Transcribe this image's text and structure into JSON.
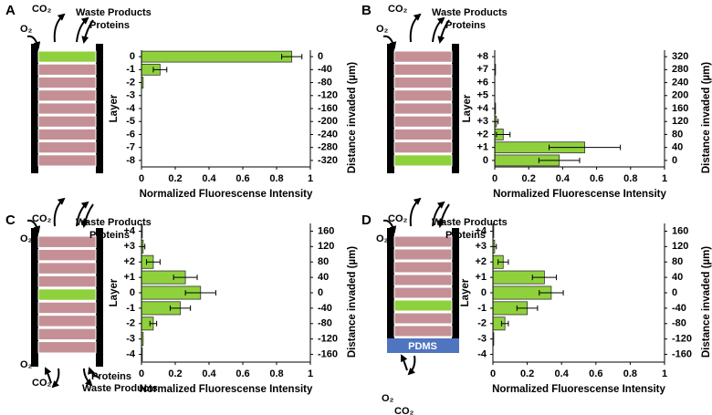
{
  "diagrams": [
    {
      "label": "A",
      "top": [
        "CO₂",
        "O₂",
        "Waste Products",
        "Proteins"
      ]
    },
    {
      "label": "B",
      "top": [
        "CO₂",
        "O₂",
        "Waste Products",
        "Proteins"
      ]
    },
    {
      "label": "C",
      "top": [
        "CO₂",
        "O₂",
        "Waste Products",
        "Proteins"
      ],
      "bottom": [
        "O₂",
        "CO₂",
        "Proteins",
        "Waste Products"
      ]
    },
    {
      "label": "D",
      "top": [
        "CO₂",
        "O₂",
        "Waste Products",
        "Proteins"
      ],
      "bottom": [
        "O₂",
        "CO₂"
      ],
      "base": "PDMS"
    }
  ],
  "chart_data": [
    {
      "type": "bar",
      "orientation": "horizontal",
      "categories": [
        "0",
        "-1",
        "-2",
        "-3",
        "-4",
        "-5",
        "-6",
        "-7",
        "-8"
      ],
      "y2_categories": [
        0,
        -40,
        -80,
        -120,
        -160,
        -200,
        -240,
        -280,
        -320
      ],
      "series": [
        {
          "color": "#8fd13c",
          "values": [
            0.89,
            0.11,
            0.01,
            0,
            0,
            0,
            0,
            0,
            0
          ],
          "errors": [
            0.06,
            0.04,
            null,
            null,
            null,
            null,
            null,
            null,
            null
          ]
        }
      ],
      "xlim": [
        0,
        1
      ],
      "xticks": [
        0,
        0.2,
        0.4,
        0.6,
        0.8,
        1
      ],
      "xlabel": "Normalized Fluorescense Intensity",
      "ylabel": "Layer",
      "y2label": "Distance invaded (µm)"
    },
    {
      "type": "bar",
      "orientation": "horizontal",
      "categories": [
        "+8",
        "+7",
        "+6",
        "+5",
        "+4",
        "+3",
        "+2",
        "+1",
        "0"
      ],
      "y2_categories": [
        320,
        280,
        240,
        200,
        160,
        120,
        80,
        40,
        0
      ],
      "series": [
        {
          "color": "#8fd13c",
          "values": [
            0,
            0.005,
            0,
            0,
            0.005,
            0.01,
            0.05,
            0.53,
            0.38
          ],
          "errors": [
            null,
            null,
            null,
            null,
            null,
            0.01,
            0.04,
            0.21,
            0.12
          ]
        }
      ],
      "xlim": [
        0,
        1
      ],
      "xticks": [
        0,
        0.2,
        0.4,
        0.6,
        0.8,
        1
      ],
      "xlabel": "Normalized Fluorescense Intensity",
      "ylabel": "Layer",
      "y2label": "Distance invaded (µm)"
    },
    {
      "type": "bar",
      "orientation": "horizontal",
      "categories": [
        "+4",
        "+3",
        "+2",
        "+1",
        "0",
        "-1",
        "-2",
        "-3",
        "-4"
      ],
      "y2_categories": [
        160,
        120,
        80,
        40,
        0,
        -40,
        -80,
        -120,
        -160
      ],
      "series": [
        {
          "color": "#8fd13c",
          "values": [
            0.005,
            0.01,
            0.07,
            0.26,
            0.35,
            0.23,
            0.07,
            0.01,
            0.005
          ],
          "errors": [
            null,
            0.01,
            0.04,
            0.07,
            0.09,
            0.06,
            0.02,
            null,
            null
          ]
        }
      ],
      "xlim": [
        0,
        1
      ],
      "xticks": [
        0,
        0.2,
        0.4,
        0.6,
        0.8,
        1
      ],
      "xlabel": "Normalized Fluorescense Intensity",
      "ylabel": "Layer",
      "y2label": "Distance invaded (µm)"
    },
    {
      "type": "bar",
      "orientation": "horizontal",
      "categories": [
        "+4",
        "+3",
        "+2",
        "+1",
        "0",
        "-1",
        "-2",
        "-3",
        "-4"
      ],
      "y2_categories": [
        160,
        120,
        80,
        40,
        0,
        -40,
        -80,
        -120,
        -160
      ],
      "series": [
        {
          "color": "#8fd13c",
          "values": [
            0.005,
            0.01,
            0.06,
            0.3,
            0.34,
            0.2,
            0.07,
            0.005,
            0
          ],
          "errors": [
            null,
            0.01,
            0.03,
            0.07,
            0.07,
            0.06,
            0.02,
            null,
            null
          ]
        }
      ],
      "xlim": [
        0,
        1
      ],
      "xticks": [
        0,
        0.2,
        0.4,
        0.6,
        0.8,
        1
      ],
      "xlabel": "Normalized Fluorescense Intensity",
      "ylabel": "Layer",
      "y2label": "Distance invaded (µm)"
    }
  ]
}
